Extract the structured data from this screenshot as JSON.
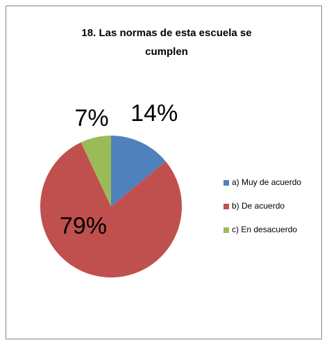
{
  "chart_data": {
    "type": "pie",
    "title": "18. Las normas de esta escuela se cumplen",
    "categories": [
      "a) Muy de acuerdo",
      "b) De acuerdo",
      "c) En desacuerdo"
    ],
    "values": [
      14,
      79,
      7
    ],
    "value_labels": [
      "14%",
      "79%",
      "7%"
    ],
    "colors": [
      "#4f81bd",
      "#c0504d",
      "#9bbb59"
    ],
    "legend": "right"
  }
}
